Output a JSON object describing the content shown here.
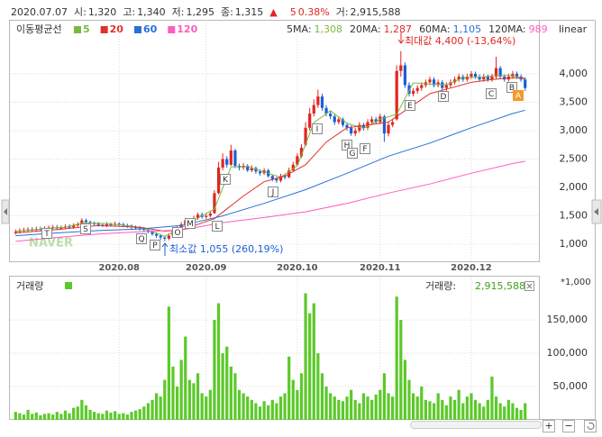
{
  "header": {
    "date": "2020.07.07",
    "open_label": "시:",
    "open": "1,320",
    "high_label": "고:",
    "high": "1,340",
    "low_label": "저:",
    "low": "1,295",
    "close_label": "종:",
    "close": "1,315",
    "change_sign": "▲",
    "change": "5",
    "change_pct": "0.38%",
    "volume_label": "거:",
    "volume": "2,915,588"
  },
  "controls": [
    "+",
    "−"
  ],
  "chart_data": [
    {
      "type": "candlestick",
      "ma_title": "이동평균선",
      "scale": "linear",
      "watermark": "NAVER",
      "grid": true,
      "up_color": "#e0261f",
      "down_color": "#1b5fd8",
      "ma_values": [
        {
          "label": "5MA:",
          "value": "1,308"
        },
        {
          "label": "20MA:",
          "value": "1,287"
        },
        {
          "label": "60MA:",
          "value": "1,105"
        },
        {
          "label": "120MA:",
          "value": "989"
        }
      ],
      "annotations": {
        "max": "최대값 4,400 (-13,64%)",
        "min": "최소값 1,055 (260,19%)"
      },
      "markers": [
        "T",
        "S",
        "Q",
        "P",
        "O",
        "M",
        "L",
        "K",
        "J",
        "I",
        "H",
        "G",
        "F",
        "E",
        "D",
        "C",
        "B",
        "A"
      ],
      "xlim": [
        -0.5,
        123.5
      ],
      "ylim": [
        700,
        4950
      ],
      "xticks": [
        {
          "value": 25,
          "label": "2020.08"
        },
        {
          "value": 46,
          "label": "2020.09"
        },
        {
          "value": 68,
          "label": "2020.10"
        },
        {
          "value": 88,
          "label": "2020.11"
        },
        {
          "value": 110,
          "label": "2020.12"
        }
      ],
      "yticks": [
        {
          "value": 1000,
          "label": "1,000"
        },
        {
          "value": 1500,
          "label": "1,500"
        },
        {
          "value": 2000,
          "label": "2,000"
        },
        {
          "value": 2500,
          "label": "2,500"
        },
        {
          "value": 3000,
          "label": "3,000"
        },
        {
          "value": 3500,
          "label": "3,500"
        },
        {
          "value": 4000,
          "label": "4,000"
        }
      ],
      "open": [
        1200,
        1220,
        1240,
        1250,
        1260,
        1250,
        1270,
        1260,
        1280,
        1290,
        1300,
        1280,
        1290,
        1310,
        1300,
        1330,
        1350,
        1420,
        1390,
        1370,
        1360,
        1340,
        1330,
        1350,
        1340,
        1360,
        1350,
        1330,
        1320,
        1300,
        1290,
        1270,
        1250,
        1220,
        1180,
        1150,
        1120,
        1100,
        1150,
        1230,
        1280,
        1350,
        1420,
        1390,
        1460,
        1520,
        1480,
        1500,
        1550,
        1900,
        2350,
        2500,
        2400,
        2650,
        2380,
        2350,
        2380,
        2300,
        2340,
        2280,
        2250,
        2300,
        2200,
        2150,
        2120,
        2200,
        2180,
        2300,
        2400,
        2550,
        2750,
        3050,
        3300,
        3450,
        3600,
        3400,
        3300,
        3250,
        3150,
        3200,
        3100,
        3050,
        2950,
        3000,
        3100,
        3050,
        3150,
        3200,
        3150,
        3250,
        2950,
        3100,
        3200,
        4050,
        4150,
        3800,
        3650,
        3700,
        3750,
        3800,
        3850,
        3900,
        3800,
        3850,
        3750,
        3800,
        3850,
        3900,
        3950,
        3900,
        3950,
        4000,
        3950,
        3900,
        3950,
        3900,
        3950,
        4100,
        3950,
        3900,
        3950,
        4000,
        3950,
        3900
      ],
      "high": [
        1260,
        1280,
        1290,
        1300,
        1300,
        1310,
        1310,
        1320,
        1330,
        1340,
        1340,
        1330,
        1350,
        1350,
        1370,
        1390,
        1460,
        1450,
        1420,
        1400,
        1390,
        1370,
        1390,
        1380,
        1400,
        1390,
        1380,
        1360,
        1350,
        1330,
        1320,
        1300,
        1280,
        1250,
        1210,
        1180,
        1150,
        1190,
        1270,
        1320,
        1390,
        1460,
        1450,
        1500,
        1560,
        1560,
        1540,
        1580,
        1950,
        2450,
        2600,
        2550,
        2750,
        2680,
        2420,
        2430,
        2410,
        2390,
        2370,
        2320,
        2340,
        2330,
        2230,
        2180,
        2240,
        2240,
        2350,
        2450,
        2600,
        2760,
        3150,
        3400,
        3550,
        3720,
        3650,
        3450,
        3350,
        3290,
        3250,
        3230,
        3140,
        3090,
        3050,
        3150,
        3140,
        3200,
        3250,
        3240,
        3300,
        3280,
        3150,
        3200,
        4150,
        4400,
        4200,
        3850,
        3750,
        3800,
        3850,
        3900,
        3950,
        3940,
        3900,
        3890,
        3850,
        3900,
        3950,
        4000,
        3990,
        4000,
        4050,
        4040,
        3990,
        4000,
        3990,
        4000,
        4300,
        4140,
        3990,
        4000,
        4050,
        4040,
        3990,
        3940
      ],
      "low": [
        1170,
        1190,
        1210,
        1220,
        1220,
        1220,
        1230,
        1230,
        1250,
        1260,
        1250,
        1250,
        1260,
        1270,
        1270,
        1300,
        1320,
        1360,
        1340,
        1330,
        1310,
        1300,
        1300,
        1310,
        1310,
        1320,
        1300,
        1290,
        1270,
        1260,
        1240,
        1220,
        1190,
        1150,
        1110,
        1080,
        1055,
        1070,
        1120,
        1200,
        1250,
        1320,
        1360,
        1370,
        1430,
        1450,
        1450,
        1470,
        1530,
        1880,
        2300,
        2350,
        2380,
        2340,
        2300,
        2310,
        2270,
        2270,
        2240,
        2210,
        2220,
        2170,
        2110,
        2080,
        2090,
        2140,
        2160,
        2270,
        2380,
        2520,
        2720,
        3000,
        3250,
        3400,
        3350,
        3250,
        3200,
        3100,
        3110,
        3060,
        3000,
        2910,
        2900,
        2960,
        3000,
        3010,
        3110,
        3110,
        3110,
        2800,
        2900,
        3060,
        3180,
        3950,
        3750,
        3600,
        3600,
        3650,
        3700,
        3760,
        3800,
        3760,
        3760,
        3710,
        3700,
        3760,
        3810,
        3860,
        3860,
        3860,
        3910,
        3910,
        3860,
        3860,
        3860,
        3860,
        3910,
        3910,
        3860,
        3860,
        3910,
        3910,
        3860,
        3700
      ],
      "close": [
        1220,
        1240,
        1250,
        1260,
        1250,
        1270,
        1260,
        1280,
        1290,
        1300,
        1280,
        1290,
        1310,
        1300,
        1330,
        1350,
        1420,
        1390,
        1370,
        1360,
        1340,
        1330,
        1350,
        1340,
        1360,
        1350,
        1330,
        1320,
        1300,
        1290,
        1270,
        1250,
        1220,
        1180,
        1150,
        1120,
        1100,
        1150,
        1230,
        1280,
        1350,
        1420,
        1390,
        1460,
        1520,
        1480,
        1500,
        1540,
        1900,
        2350,
        2500,
        2400,
        2650,
        2380,
        2350,
        2380,
        2300,
        2340,
        2280,
        2250,
        2300,
        2200,
        2150,
        2120,
        2200,
        2180,
        2300,
        2400,
        2550,
        2700,
        3050,
        3300,
        3450,
        3600,
        3400,
        3300,
        3250,
        3150,
        3200,
        3100,
        3050,
        2950,
        3000,
        3100,
        3050,
        3150,
        3200,
        3150,
        3250,
        2950,
        3100,
        3150,
        4050,
        4150,
        3800,
        3650,
        3700,
        3750,
        3800,
        3850,
        3900,
        3800,
        3850,
        3750,
        3800,
        3850,
        3900,
        3950,
        3900,
        3950,
        4000,
        3950,
        3900,
        3950,
        3900,
        3950,
        4100,
        3950,
        3900,
        3950,
        4000,
        3950,
        3900,
        3750
      ],
      "series": [
        {
          "name": "5",
          "color": "#7cb83d",
          "x": [
            0,
            4,
            8,
            12,
            16,
            20,
            24,
            28,
            32,
            36,
            40,
            44,
            48,
            52,
            56,
            60,
            64,
            68,
            72,
            76,
            80,
            84,
            88,
            92,
            96,
            100,
            104,
            108,
            112,
            116,
            120,
            123
          ],
          "values": [
            1230,
            1250,
            1280,
            1300,
            1370,
            1370,
            1350,
            1320,
            1250,
            1140,
            1290,
            1460,
            1620,
            2360,
            2370,
            2270,
            2180,
            2380,
            3140,
            3350,
            3130,
            3040,
            3200,
            3290,
            3840,
            3820,
            3810,
            3930,
            3940,
            3970,
            3970,
            3900
          ]
        },
        {
          "name": "20",
          "color": "#e0302a",
          "x": [
            0,
            10,
            20,
            30,
            36,
            40,
            48,
            55,
            60,
            65,
            70,
            75,
            80,
            85,
            90,
            95,
            100,
            105,
            110,
            115,
            120,
            123
          ],
          "values": [
            1200,
            1260,
            1330,
            1300,
            1230,
            1250,
            1450,
            1850,
            2100,
            2200,
            2400,
            2800,
            3050,
            3100,
            3150,
            3400,
            3650,
            3750,
            3850,
            3900,
            3930,
            3920
          ]
        },
        {
          "name": "60",
          "color": "#2a6fd8",
          "x": [
            0,
            10,
            20,
            30,
            40,
            50,
            60,
            70,
            80,
            90,
            100,
            110,
            120,
            123
          ],
          "values": [
            1150,
            1200,
            1240,
            1270,
            1330,
            1500,
            1720,
            1960,
            2250,
            2550,
            2780,
            3050,
            3300,
            3360
          ]
        },
        {
          "name": "120",
          "color": "#ff5cbf",
          "x": [
            0,
            10,
            20,
            30,
            40,
            50,
            60,
            70,
            80,
            90,
            100,
            110,
            120,
            123
          ],
          "values": [
            1050,
            1120,
            1180,
            1220,
            1250,
            1380,
            1470,
            1570,
            1720,
            1900,
            2060,
            2250,
            2420,
            2460
          ]
        }
      ]
    },
    {
      "type": "bar",
      "title": "거래량",
      "current_label": "거래량:",
      "current": "2,915,588",
      "unit": "*1,000",
      "color": "#5cc92a",
      "grid": true,
      "xlim": [
        -0.5,
        123.5
      ],
      "ylim": [
        0,
        215000
      ],
      "yticks": [
        {
          "value": 50000,
          "label": "50,000"
        },
        {
          "value": 100000,
          "label": "100,000"
        },
        {
          "value": 150000,
          "label": "150,000"
        }
      ],
      "values": [
        12000,
        10000,
        8000,
        15000,
        9000,
        11000,
        7000,
        9000,
        10000,
        8000,
        12000,
        9000,
        14000,
        10000,
        18000,
        20000,
        30000,
        22000,
        15000,
        12000,
        10000,
        9000,
        14000,
        11000,
        13000,
        9000,
        10000,
        8000,
        12000,
        14000,
        16000,
        20000,
        25000,
        30000,
        40000,
        35000,
        60000,
        170000,
        80000,
        50000,
        90000,
        125000,
        60000,
        55000,
        70000,
        40000,
        35000,
        45000,
        150000,
        175000,
        100000,
        110000,
        80000,
        70000,
        45000,
        40000,
        35000,
        30000,
        25000,
        20000,
        28000,
        22000,
        30000,
        25000,
        35000,
        40000,
        95000,
        60000,
        45000,
        70000,
        190000,
        160000,
        175000,
        100000,
        70000,
        50000,
        40000,
        35000,
        30000,
        28000,
        35000,
        45000,
        30000,
        25000,
        40000,
        35000,
        30000,
        38000,
        45000,
        70000,
        40000,
        35000,
        185000,
        150000,
        90000,
        60000,
        40000,
        35000,
        50000,
        30000,
        28000,
        25000,
        40000,
        30000,
        22000,
        35000,
        30000,
        45000,
        25000,
        35000,
        40000,
        30000,
        25000,
        20000,
        30000,
        65000,
        35000,
        25000,
        20000,
        30000,
        25000,
        18000,
        15000,
        25000
      ]
    }
  ]
}
